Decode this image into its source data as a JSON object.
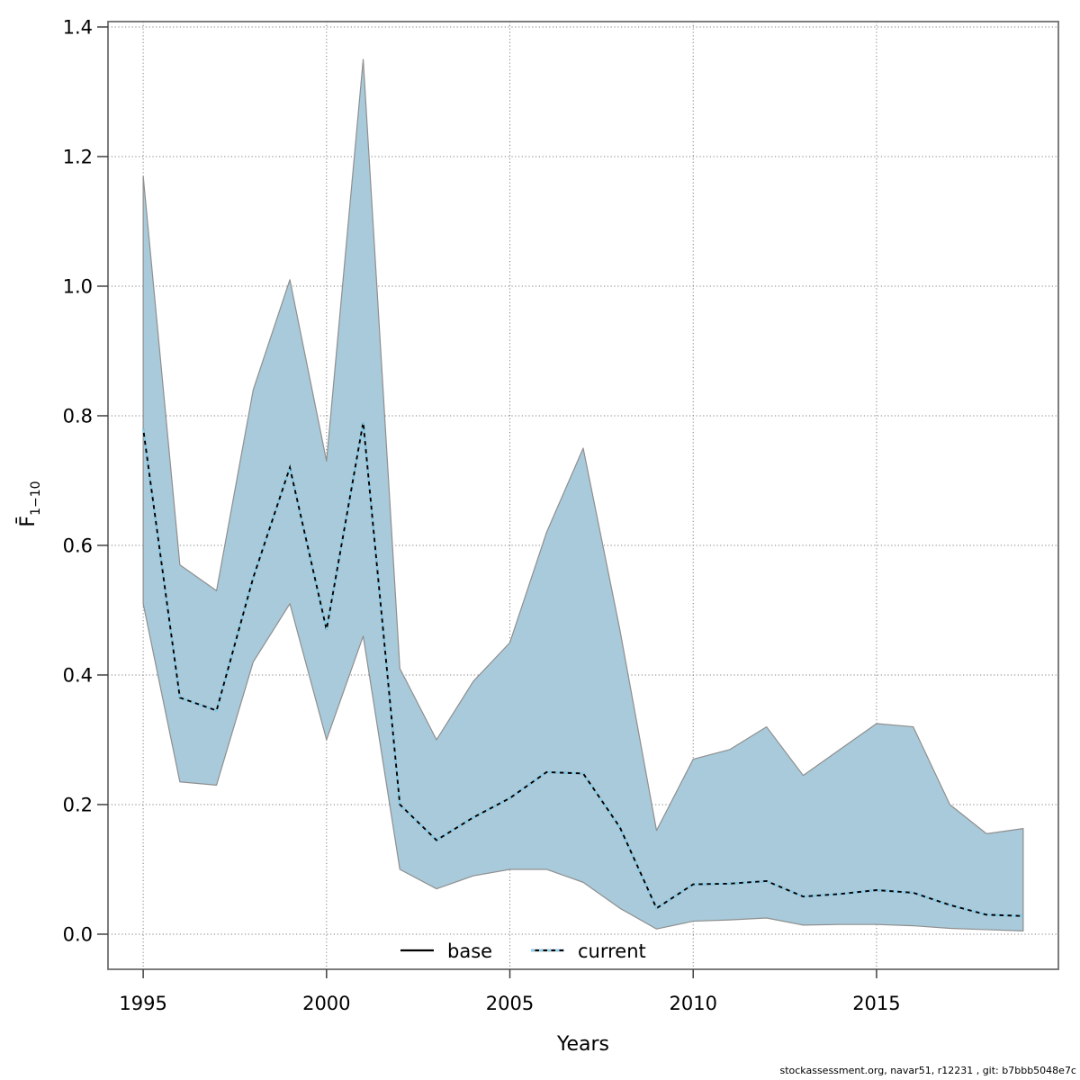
{
  "figure": {
    "footer": "stockassessment.org, navar51, r12231 , git: b7bbb5048e7c"
  },
  "axes": {
    "xlabel": "Years",
    "ylabel_main": "F̄",
    "ylabel_sub": "1−10"
  },
  "legend": {
    "items": [
      {
        "label": "base",
        "style": "solid-black"
      },
      {
        "label": "current",
        "style": "dashed-lightblue-over-black"
      }
    ]
  },
  "colors": {
    "ribbon_fill": "#a8cada",
    "ribbon_edge": "#8f8f8f",
    "base_line": "#000000",
    "current_dash": "#87ceeb",
    "grid": "#7f7f7f",
    "frame": "#6e6e6e",
    "tick": "#404040"
  },
  "chart_data": {
    "type": "line",
    "title": "",
    "xlabel": "Years",
    "ylabel": "F̄ 1−10 (mean fishing mortality ages 1-10)",
    "grid": true,
    "legend_position": "bottom-center-inside",
    "x_ticks": [
      1995,
      2000,
      2005,
      2010,
      2015
    ],
    "y_ticks": [
      0.0,
      0.2,
      0.4,
      0.6,
      0.8,
      1.0,
      1.2,
      1.4
    ],
    "y_tick_labels": [
      "0.0",
      "0.2",
      "0.4",
      "0.6",
      "0.8",
      "1.0",
      "1.2",
      "1.4"
    ],
    "xlim": [
      1994.04,
      2019.96
    ],
    "ylim": [
      -0.0542,
      1.4083
    ],
    "x": [
      1995,
      1996,
      1997,
      1998,
      1999,
      2000,
      2001,
      2002,
      2003,
      2004,
      2005,
      2006,
      2007,
      2008,
      2009,
      2010,
      2011,
      2012,
      2013,
      2014,
      2015,
      2016,
      2017,
      2018,
      2019
    ],
    "series": [
      {
        "name": "base",
        "values": [
          0.78,
          0.365,
          0.345,
          0.55,
          0.72,
          0.47,
          0.79,
          0.2,
          0.145,
          0.18,
          0.21,
          0.25,
          0.248,
          0.165,
          0.04,
          0.077,
          0.078,
          0.082,
          0.058,
          0.062,
          0.068,
          0.064,
          0.045,
          0.03,
          0.028
        ]
      },
      {
        "name": "current",
        "values": [
          0.78,
          0.365,
          0.345,
          0.55,
          0.72,
          0.47,
          0.79,
          0.2,
          0.145,
          0.18,
          0.21,
          0.25,
          0.248,
          0.165,
          0.04,
          0.077,
          0.078,
          0.082,
          0.058,
          0.062,
          0.068,
          0.064,
          0.045,
          0.03,
          0.028
        ]
      }
    ],
    "ribbon": {
      "lower": [
        0.51,
        0.235,
        0.23,
        0.42,
        0.51,
        0.3,
        0.46,
        0.1,
        0.07,
        0.09,
        0.1,
        0.1,
        0.08,
        0.04,
        0.008,
        0.02,
        0.022,
        0.025,
        0.014,
        0.015,
        0.015,
        0.013,
        0.009,
        0.007,
        0.005
      ],
      "upper": [
        1.17,
        0.57,
        0.53,
        0.84,
        1.01,
        0.73,
        1.35,
        0.41,
        0.3,
        0.39,
        0.45,
        0.62,
        0.75,
        0.47,
        0.16,
        0.27,
        0.285,
        0.32,
        0.245,
        0.285,
        0.325,
        0.32,
        0.2,
        0.155,
        0.163
      ]
    }
  }
}
